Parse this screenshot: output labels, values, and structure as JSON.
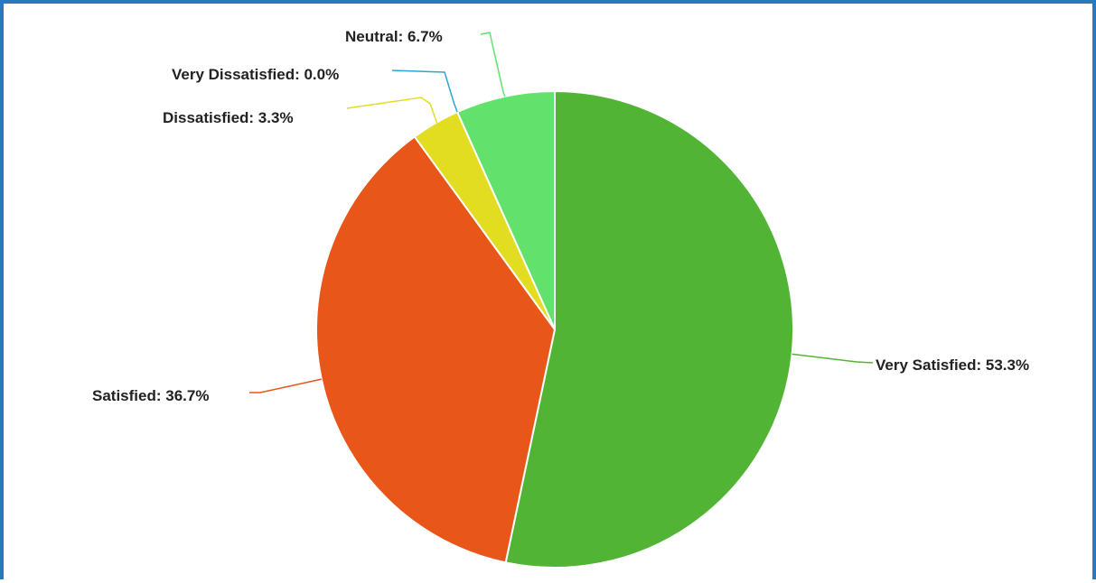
{
  "chart_data": {
    "type": "pie",
    "title": "",
    "categories": [
      "Very Satisfied",
      "Satisfied",
      "Dissatisfied",
      "Very Dissatisfied",
      "Neutral"
    ],
    "values": [
      53.3,
      36.7,
      3.3,
      0.0,
      6.7
    ],
    "labels": [
      "Very Satisfied: 53.3%",
      "Satisfied: 36.7%",
      "Dissatisfied: 3.3%",
      "Very Dissatisfied: 0.0%",
      "Neutral: 6.7%"
    ],
    "colors": [
      "#52b435",
      "#e9561a",
      "#e2dd20",
      "#2aa7d8",
      "#62e26c"
    ],
    "legend": "none",
    "start_angle": "12 o'clock",
    "direction": "clockwise"
  }
}
